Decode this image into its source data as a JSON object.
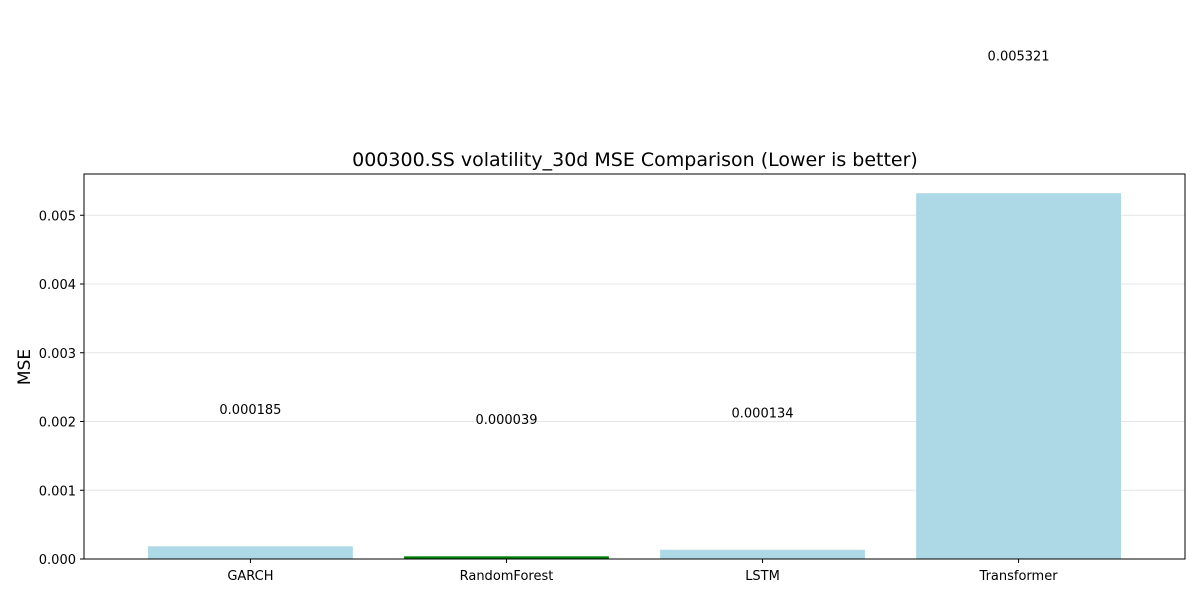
{
  "chart_data": {
    "type": "bar",
    "title": "000300.SS volatility_30d MSE Comparison (Lower is better)",
    "xlabel": "",
    "ylabel": "MSE",
    "categories": [
      "GARCH",
      "RandomForest",
      "LSTM",
      "Transformer"
    ],
    "values": [
      0.000185,
      3.9e-05,
      0.000134,
      0.005321
    ],
    "value_labels": [
      "0.000185",
      "0.000039",
      "0.000134",
      "0.005321"
    ],
    "bar_colors": [
      "#add8e6",
      "#008000",
      "#add8e6",
      "#add8e6"
    ],
    "ylim": [
      0,
      0.0056
    ],
    "yticks": [
      0,
      0.001,
      0.002,
      0.003,
      0.004,
      0.005
    ],
    "ytick_labels": [
      "0.000",
      "0.001",
      "0.002",
      "0.003",
      "0.004",
      "0.005"
    ],
    "grid": "y"
  }
}
